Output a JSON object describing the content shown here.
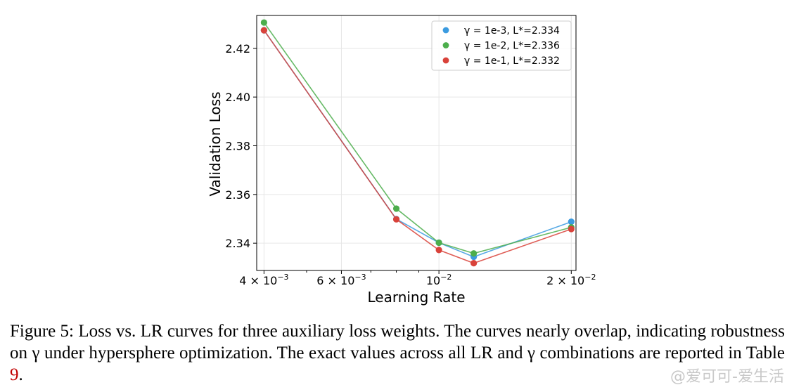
{
  "chart_data": {
    "type": "line",
    "x_scale": "log",
    "x": [
      0.004,
      0.008,
      0.01,
      0.012,
      0.02
    ],
    "series": [
      {
        "name": "γ = 1e-3, L*=2.334",
        "color": "#3b9be0",
        "values": [
          2.4274,
          2.3499,
          2.3402,
          2.3344,
          2.3488
        ]
      },
      {
        "name": "γ = 1e-2, L*=2.336",
        "color": "#4cae4c",
        "values": [
          2.4306,
          2.3542,
          2.3402,
          2.3358,
          2.3465
        ]
      },
      {
        "name": "γ = 1e-1, L*=2.332",
        "color": "#d9423a",
        "values": [
          2.4274,
          2.3498,
          2.3372,
          2.3318,
          2.3458
        ]
      }
    ],
    "xlabel": "Learning Rate",
    "ylabel": "Validation Loss",
    "xlim": [
      0.00385,
      0.0205
    ],
    "ylim": [
      2.3288,
      2.4335
    ],
    "yticks": [
      2.34,
      2.36,
      2.38,
      2.4,
      2.42
    ],
    "ytick_labels": [
      "2.34",
      "2.36",
      "2.38",
      "2.40",
      "2.42"
    ],
    "xticks": [
      {
        "value": 0.004,
        "base": "4 × 10",
        "exp": "−3"
      },
      {
        "value": 0.006,
        "base": "6 × 10",
        "exp": "−3"
      },
      {
        "value": 0.01,
        "base": "10",
        "exp": "−2"
      },
      {
        "value": 0.02,
        "base": "2 × 10",
        "exp": "−2"
      }
    ],
    "grid": true,
    "legend_position": "top-right"
  },
  "caption": {
    "label": "Figure 5:",
    "text": "Loss vs. LR curves for three auxiliary loss weights. The curves nearly overlap, indicating robustness on γ under hypersphere optimization. The exact values across all LR and γ combinations are reported in Table",
    "ref": "9",
    "end": "."
  },
  "watermark": "@爱可可-爱生活"
}
